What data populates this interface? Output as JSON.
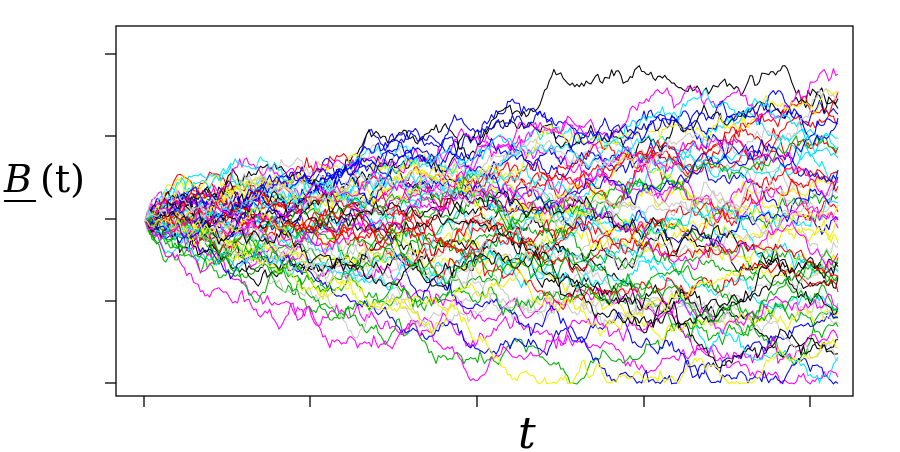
{
  "chart_data": {
    "type": "line",
    "ylabel_symbol": "B",
    "ylabel_arg": "(t)",
    "xlabel": "t",
    "x_tick_count": 5,
    "y_tick_count": 5,
    "tick_labels_shown": false,
    "grid": false,
    "legend": "none",
    "series_count": 64,
    "palette": [
      "#000000",
      "#ff0000",
      "#00b000",
      "#0000ff",
      "#00e5ff",
      "#ff00ff",
      "#f0f000",
      "#c8c8c8"
    ],
    "description_note": ""
  }
}
